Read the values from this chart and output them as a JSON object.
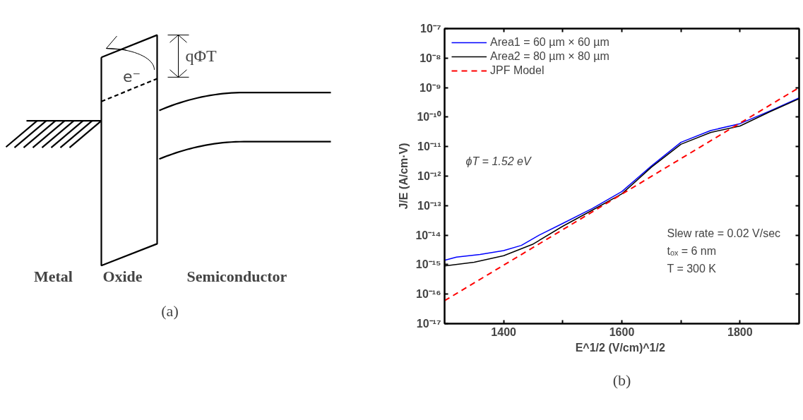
{
  "chart_data": [
    {
      "type": "other",
      "annotations": [
        "qΦT",
        "e⁻",
        "Metal",
        "Oxide",
        "Semiconductor",
        "(a)"
      ]
    },
    {
      "type": "line",
      "xlabel": "E^1/2  (V/cm)^1/2",
      "ylabel": "J/E (A/cm·V)",
      "log": "y",
      "xlim": [
        1300,
        1900
      ],
      "ylim": [
        1e-17,
        1e-07
      ],
      "xticks": [
        1400,
        {
          "value": 1500,
          "label": null
        },
        1600,
        {
          "value": 1700,
          "label": null
        },
        1800
      ],
      "yticks": [
        {
          "value": 1e-17,
          "label": "10⁻¹⁷"
        },
        {
          "value": 1e-16,
          "label": "10⁻¹⁶"
        },
        {
          "value": 1e-15,
          "label": "10⁻¹⁵"
        },
        {
          "value": 1e-14,
          "label": "10⁻¹⁴"
        },
        {
          "value": 1e-13,
          "label": "10⁻¹³"
        },
        {
          "value": 1e-12,
          "label": "10⁻¹²"
        },
        {
          "value": 1e-11,
          "label": "10⁻¹¹"
        },
        {
          "value": 1e-10,
          "label": "10⁻¹⁰"
        },
        {
          "value": 1e-09,
          "label": "10⁻⁹"
        },
        {
          "value": 1e-08,
          "label": "10⁻⁸"
        },
        {
          "value": 1e-07,
          "label": "10⁻⁷"
        }
      ],
      "grid": false,
      "legend": "top left",
      "series": [
        {
          "name": "Area1 = 60 µm × 60 µm",
          "color": "#0000ff",
          "x": [
            1300,
            1320,
            1360,
            1400,
            1430,
            1460,
            1500,
            1550,
            1600,
            1650,
            1700,
            1750,
            1800,
            1850,
            1900
          ],
          "values": [
            1.4e-15,
            1.8e-15,
            2.2e-15,
            3e-15,
            4.5e-15,
            1e-14,
            2.5e-14,
            8e-14,
            3e-13,
            2.2e-12,
            1.4e-11,
            3.5e-11,
            6e-11,
            1.6e-10,
            4.5e-10
          ]
        },
        {
          "name": "Area2 = 80 µm × 80 µm",
          "color": "#000000",
          "x": [
            1300,
            1350,
            1400,
            1450,
            1500,
            1550,
            1600,
            1650,
            1700,
            1750,
            1800,
            1850,
            1900
          ],
          "values": [
            9e-16,
            1.2e-15,
            2e-15,
            5e-15,
            2e-14,
            7e-14,
            2.5e-13,
            2e-12,
            1.2e-11,
            3e-11,
            5e-11,
            1.5e-10,
            4.2e-10
          ]
        },
        {
          "name": "JPF Model",
          "color": "#ff0000",
          "line_style": "dashed",
          "x": [
            1300,
            1900
          ],
          "values": [
            6e-17,
            1e-09
          ]
        }
      ],
      "annotations": [
        "ϕT = 1.52 eV",
        "Slew rate = 0.02 V/sec",
        "tₒₓ = 6 nm",
        "T = 300 K",
        "(b)"
      ]
    }
  ]
}
